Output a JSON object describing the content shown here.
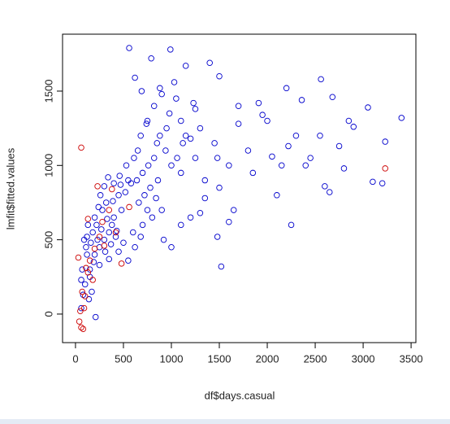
{
  "chart_data": {
    "type": "scatter",
    "xlabel": "df$days.casual",
    "ylabel": "lmfit$fitted.values",
    "xlim": [
      -135,
      3550
    ],
    "ylim": [
      -192,
      1883
    ],
    "xticks": [
      0,
      500,
      1000,
      1500,
      2000,
      2500,
      3000,
      3500
    ],
    "yticks": [
      0,
      500,
      1000,
      1500
    ],
    "series": [
      {
        "color": "#0000cc",
        "x": [
          560,
          990,
          790,
          1400,
          1150,
          1230,
          690,
          620,
          880,
          1030,
          1250,
          1500,
          1700,
          1910,
          2050,
          2200,
          2360,
          2560,
          2680,
          2850,
          3050,
          3230,
          3400,
          1300,
          1450,
          1600,
          1800,
          2000,
          2150,
          2300,
          2450,
          2600,
          2750,
          2900,
          3100,
          1100,
          1200,
          1350,
          1500,
          1650,
          1850,
          2100,
          2250,
          2400,
          2550,
          1350,
          1480,
          1520,
          1600,
          1700,
          1950,
          2220,
          2650,
          2800,
          3200,
          1480,
          1250,
          1100,
          950,
          850,
          750,
          650,
          550,
          450,
          400,
          350,
          300,
          250,
          200,
          150,
          100,
          80,
          60,
          120,
          180,
          220,
          280,
          320,
          380,
          420,
          480,
          520,
          580,
          640,
          700,
          760,
          820,
          880,
          940,
          1000,
          1060,
          1120,
          700,
          800,
          900,
          600,
          500,
          450,
          350,
          250,
          150,
          110,
          90,
          70,
          200,
          260,
          300,
          340,
          400,
          460,
          530,
          610,
          680,
          740,
          820,
          900,
          980,
          1050,
          1150,
          660,
          720,
          780,
          860,
          920,
          1000,
          1100,
          1200,
          1300,
          130,
          160,
          190,
          230,
          270,
          310,
          370,
          430,
          170,
          140,
          210,
          60,
          120,
          240,
          330,
          390,
          470,
          550,
          620,
          680,
          750,
          840
        ],
        "values": [
          1790,
          1780,
          1720,
          1690,
          1670,
          1420,
          1500,
          1590,
          1520,
          1560,
          1380,
          1600,
          1400,
          1420,
          1060,
          1520,
          1440,
          1580,
          1460,
          1300,
          1390,
          1160,
          1320,
          1250,
          1150,
          1000,
          1100,
          1300,
          1000,
          1200,
          1050,
          860,
          1130,
          1260,
          890,
          1300,
          1180,
          900,
          850,
          700,
          950,
          800,
          600,
          1000,
          1200,
          780,
          520,
          320,
          620,
          1280,
          1340,
          1130,
          820,
          980,
          880,
          1050,
          1050,
          950,
          1250,
          1150,
          1300,
          1100,
          900,
          800,
          650,
          550,
          500,
          450,
          400,
          300,
          200,
          130,
          230,
          400,
          550,
          600,
          700,
          750,
          600,
          520,
          700,
          820,
          880,
          900,
          950,
          1000,
          1050,
          1200,
          1100,
          1000,
          1050,
          1150,
          600,
          650,
          700,
          550,
          480,
          420,
          370,
          330,
          250,
          450,
          500,
          300,
          650,
          800,
          860,
          920,
          880,
          930,
          1000,
          1050,
          1200,
          1280,
          1400,
          1480,
          1350,
          1450,
          1200,
          750,
          800,
          850,
          900,
          500,
          450,
          600,
          650,
          680,
          600,
          480,
          350,
          500,
          570,
          420,
          470,
          560,
          150,
          100,
          -20,
          40,
          520,
          720,
          640,
          760,
          870,
          360,
          450,
          520,
          700,
          780
        ]
      },
      {
        "color": "#cc0000",
        "x": [
          60,
          30,
          40,
          60,
          80,
          50,
          90,
          110,
          130,
          150,
          200,
          250,
          280,
          350,
          420,
          480,
          380,
          70,
          100,
          3230,
          560,
          300,
          180,
          230,
          130
        ],
        "values": [
          1120,
          380,
          -50,
          -90,
          -100,
          20,
          40,
          310,
          280,
          360,
          440,
          520,
          620,
          700,
          550,
          340,
          840,
          150,
          120,
          980,
          720,
          460,
          230,
          860,
          640
        ]
      }
    ]
  }
}
